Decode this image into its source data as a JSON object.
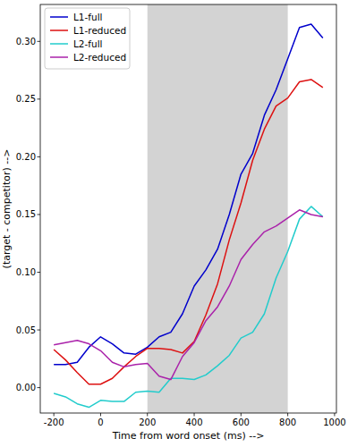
{
  "chart_data": {
    "type": "line",
    "x_label": "Time from word onset (ms) -->",
    "y_label": "(target - competitor) -->",
    "x": [
      -200,
      -150,
      -100,
      -50,
      0,
      50,
      100,
      150,
      200,
      250,
      300,
      350,
      400,
      450,
      500,
      550,
      600,
      650,
      700,
      750,
      800,
      850,
      900,
      950
    ],
    "series": [
      {
        "name": "L1-full",
        "color": "#0000cc",
        "values": [
          0.02,
          0.02,
          0.022,
          0.035,
          0.044,
          0.038,
          0.03,
          0.029,
          0.035,
          0.044,
          0.048,
          0.064,
          0.088,
          0.102,
          0.12,
          0.15,
          0.185,
          0.203,
          0.236,
          0.258,
          0.285,
          0.312,
          0.315,
          0.303
        ]
      },
      {
        "name": "L1-reduced",
        "color": "#dd1111",
        "values": [
          0.033,
          0.024,
          0.013,
          0.003,
          0.003,
          0.008,
          0.018,
          0.027,
          0.034,
          0.034,
          0.033,
          0.03,
          0.04,
          0.063,
          0.09,
          0.128,
          0.16,
          0.197,
          0.224,
          0.244,
          0.251,
          0.265,
          0.267,
          0.26
        ]
      },
      {
        "name": "L2-full",
        "color": "#22cccc",
        "values": [
          -0.005,
          -0.008,
          -0.014,
          -0.017,
          -0.011,
          -0.012,
          -0.012,
          -0.004,
          -0.003,
          -0.004,
          0.008,
          0.008,
          0.007,
          0.011,
          0.019,
          0.028,
          0.043,
          0.048,
          0.064,
          0.095,
          0.118,
          0.146,
          0.157,
          0.148
        ]
      },
      {
        "name": "L2-reduced",
        "color": "#aa22aa",
        "values": [
          0.037,
          0.039,
          0.041,
          0.038,
          0.032,
          0.022,
          0.018,
          0.02,
          0.021,
          0.01,
          0.007,
          0.027,
          0.039,
          0.058,
          0.07,
          0.088,
          0.111,
          0.124,
          0.135,
          0.14,
          0.147,
          0.154,
          0.15,
          0.148
        ]
      }
    ],
    "shaded_region": [
      200,
      800
    ],
    "xlim": [
      -258,
      1008
    ],
    "ylim": [
      -0.022,
      0.332
    ],
    "xticks": [
      -200,
      0,
      200,
      400,
      600,
      800,
      1000
    ],
    "yticks": [
      {
        "value": 0,
        "label": "0.00"
      },
      {
        "value": 0.05,
        "label": "0.05"
      },
      {
        "value": 0.1,
        "label": "0.10"
      },
      {
        "value": 0.15,
        "label": "0.15"
      },
      {
        "value": 0.2,
        "label": "0.20"
      },
      {
        "value": 0.25,
        "label": "0.25"
      },
      {
        "value": 0.3,
        "label": "0.30"
      }
    ],
    "grid": false,
    "legend": "upper left"
  }
}
